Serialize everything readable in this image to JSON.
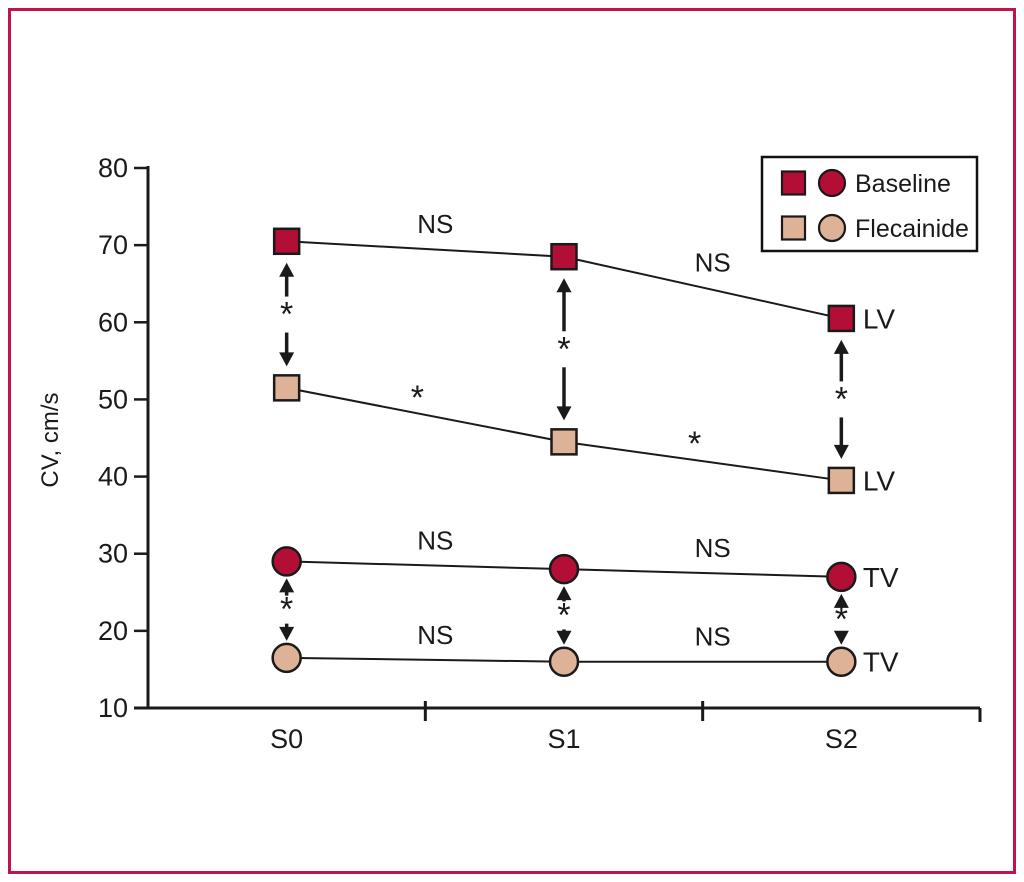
{
  "figure": {
    "frame_color": "#c01348",
    "background": "#ffffff"
  },
  "chart_data": {
    "type": "line",
    "title": "",
    "xlabel": "",
    "ylabel": "CV, cm/s",
    "ylim": [
      10,
      80
    ],
    "ytick_step": 10,
    "yticks": [
      80,
      70,
      60,
      50,
      40,
      30,
      20,
      10
    ],
    "categories": [
      "S0",
      "S1",
      "S2"
    ],
    "grid": false,
    "colors": {
      "baseline": "#b30e35",
      "flecainide": "#ddb297",
      "line": "#1a1a1a"
    },
    "series": [
      {
        "name": "Baseline LV",
        "group": "Baseline",
        "marker": "square",
        "color": "#b30e35",
        "values": [
          70.5,
          68.5,
          60.5
        ],
        "end_label": "LV",
        "segment_labels": [
          "NS",
          "NS"
        ]
      },
      {
        "name": "Flecainide LV",
        "group": "Flecainide",
        "marker": "square",
        "color": "#ddb297",
        "values": [
          51.5,
          44.5,
          39.5
        ],
        "end_label": "LV",
        "segment_labels": [
          "*",
          "*"
        ]
      },
      {
        "name": "Baseline TV",
        "group": "Baseline",
        "marker": "circle",
        "color": "#b30e35",
        "values": [
          29,
          28,
          27
        ],
        "end_label": "TV",
        "segment_labels": [
          "NS",
          "NS"
        ]
      },
      {
        "name": "Flecainide TV",
        "group": "Flecainide",
        "marker": "circle",
        "color": "#ddb297",
        "values": [
          16.5,
          16,
          16
        ],
        "end_label": "TV",
        "segment_labels": [
          "NS",
          "NS"
        ]
      }
    ],
    "pair_arrows": [
      {
        "top_series": "Baseline LV",
        "bottom_series": "Flecainide LV",
        "label": "*",
        "at_categories": [
          "S0",
          "S1",
          "S2"
        ]
      },
      {
        "top_series": "Baseline TV",
        "bottom_series": "Flecainide TV",
        "label": "*",
        "at_categories": [
          "S0",
          "S1",
          "S2"
        ]
      }
    ],
    "legend": {
      "position": "top-right",
      "entries": [
        {
          "label": "Baseline",
          "color": "#b30e35"
        },
        {
          "label": "Flecainide",
          "color": "#ddb297"
        }
      ]
    }
  }
}
